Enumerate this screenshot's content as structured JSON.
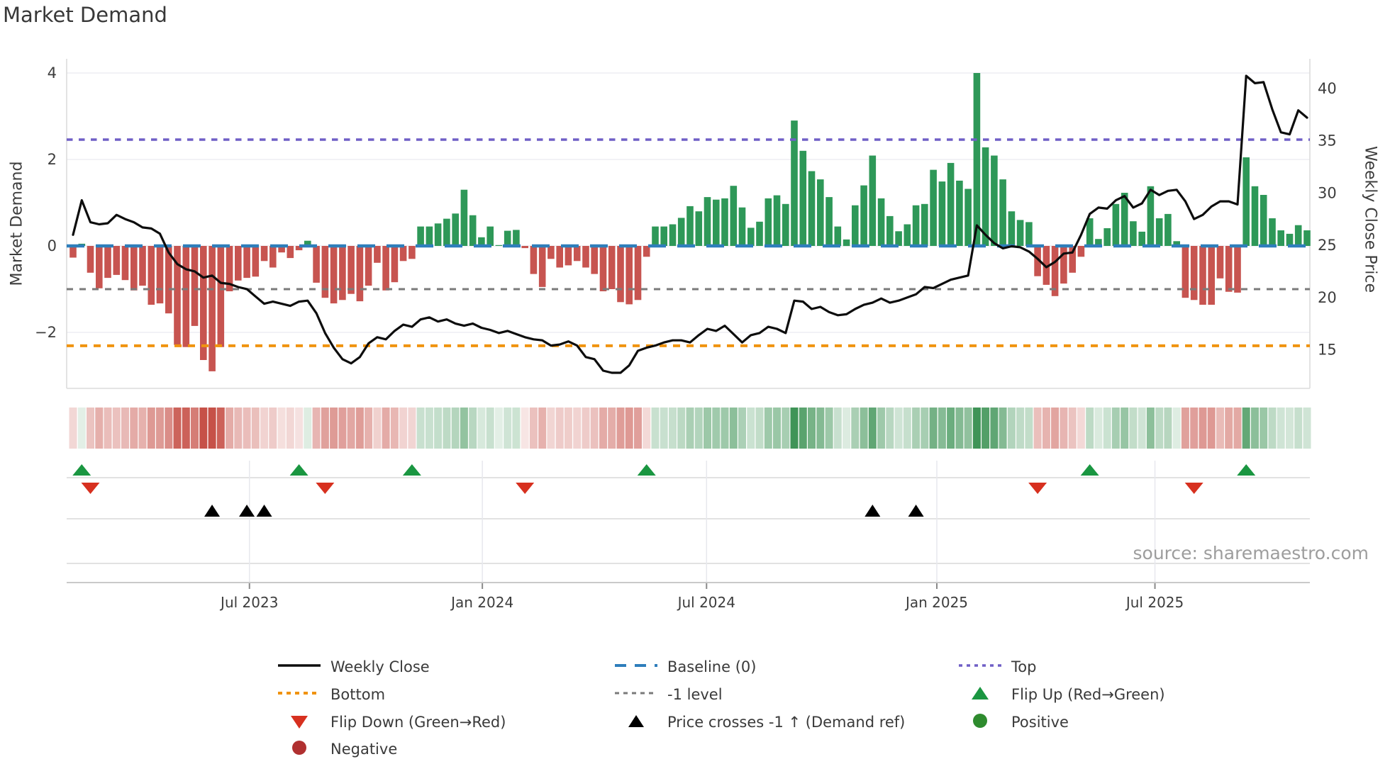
{
  "title": "Market Demand",
  "source": "source: sharemaestro.com",
  "axes": {
    "left_title": "Market Demand",
    "right_title": "Weekly Close Price",
    "left_ticks": [
      {
        "label": "4",
        "value": 4
      },
      {
        "label": "2",
        "value": 2
      },
      {
        "label": "0",
        "value": 0
      },
      {
        "label": "−2",
        "value": -2
      }
    ],
    "right_ticks": [
      {
        "label": "40",
        "value": 40
      },
      {
        "label": "35",
        "value": 35
      },
      {
        "label": "30",
        "value": 30
      },
      {
        "label": "25",
        "value": 25
      },
      {
        "label": "20",
        "value": 20
      },
      {
        "label": "15",
        "value": 15
      }
    ],
    "x_ticks": [
      {
        "label": "Jul 2023",
        "week": 20.3
      },
      {
        "label": "Jan 2024",
        "week": 47.1
      },
      {
        "label": "Jul 2024",
        "week": 72.9
      },
      {
        "label": "Jan 2025",
        "week": 99.4
      },
      {
        "label": "Jul 2025",
        "week": 124.5
      }
    ]
  },
  "chart_data": {
    "type": "bar+line",
    "title": "Market Demand",
    "x_start_date": "2023-02-10",
    "x_frequency": "weekly",
    "n_weeks": 143,
    "ylim_demand": [
      -3.3,
      4.35
    ],
    "ylim_price": [
      11.6,
      42.6
    ],
    "grid_demand_levels": [
      4,
      2,
      0,
      -2
    ],
    "ref_levels": {
      "baseline": 0,
      "top": 2.46,
      "minus_one": -1,
      "bottom": -2.31
    },
    "series": [
      {
        "name": "Market Demand",
        "type": "bar",
        "values": [
          -0.27,
          0.05,
          -0.62,
          -0.98,
          -0.74,
          -0.67,
          -0.79,
          -1.03,
          -0.92,
          -1.36,
          -1.33,
          -1.56,
          -2.29,
          -2.34,
          -1.85,
          -2.64,
          -2.9,
          -2.34,
          -1.05,
          -0.8,
          -0.74,
          -0.71,
          -0.35,
          -0.5,
          -0.15,
          -0.28,
          -0.1,
          0.12,
          -0.85,
          -1.2,
          -1.33,
          -1.25,
          -1.11,
          -1.28,
          -0.92,
          -0.39,
          -1.03,
          -0.84,
          -0.35,
          -0.3,
          0.45,
          0.45,
          0.52,
          0.63,
          0.75,
          1.3,
          0.71,
          0.2,
          0.45,
          0.02,
          0.35,
          0.37,
          -0.05,
          -0.65,
          -0.95,
          -0.3,
          -0.5,
          -0.45,
          -0.35,
          -0.5,
          -0.65,
          -1.05,
          -1.0,
          -1.3,
          -1.35,
          -1.25,
          -0.25,
          0.45,
          0.45,
          0.5,
          0.65,
          0.92,
          0.8,
          1.13,
          1.07,
          1.1,
          1.39,
          0.89,
          0.42,
          0.56,
          1.1,
          1.17,
          0.97,
          2.9,
          2.2,
          1.73,
          1.54,
          1.13,
          0.45,
          0.15,
          0.94,
          1.4,
          2.09,
          1.1,
          0.69,
          0.34,
          0.5,
          0.94,
          0.97,
          1.76,
          1.49,
          1.92,
          1.51,
          1.32,
          4.0,
          2.28,
          2.09,
          1.54,
          0.8,
          0.6,
          0.55,
          -0.7,
          -0.9,
          -1.16,
          -0.87,
          -0.62,
          -0.25,
          0.64,
          0.16,
          0.41,
          0.97,
          1.23,
          0.57,
          0.33,
          1.38,
          0.64,
          0.74,
          0.11,
          -1.2,
          -1.25,
          -1.36,
          -1.36,
          -0.75,
          -1.06,
          -1.08,
          2.05,
          1.38,
          1.18,
          0.64,
          0.36,
          0.28,
          0.48,
          0.36
        ]
      },
      {
        "name": "Weekly Close",
        "type": "line",
        "values": [
          26.0,
          29.3,
          27.2,
          27.0,
          27.1,
          27.9,
          27.5,
          27.2,
          26.7,
          26.6,
          26.1,
          24.3,
          23.2,
          22.7,
          22.5,
          21.9,
          22.1,
          21.4,
          21.3,
          21.0,
          20.8,
          20.1,
          19.4,
          19.6,
          19.4,
          19.2,
          19.6,
          19.7,
          18.5,
          16.6,
          15.2,
          14.1,
          13.7,
          14.3,
          15.6,
          16.2,
          16.0,
          16.8,
          17.4,
          17.2,
          17.9,
          18.1,
          17.7,
          17.9,
          17.5,
          17.3,
          17.5,
          17.1,
          16.9,
          16.6,
          16.8,
          16.5,
          16.2,
          16.0,
          15.9,
          15.4,
          15.5,
          15.8,
          15.4,
          14.3,
          14.1,
          13.0,
          12.8,
          12.8,
          13.5,
          14.9,
          15.2,
          15.4,
          15.7,
          15.9,
          15.9,
          15.7,
          16.4,
          17.0,
          16.8,
          17.3,
          16.5,
          15.7,
          16.4,
          16.6,
          17.2,
          17.0,
          16.6,
          19.7,
          19.6,
          18.9,
          19.1,
          18.6,
          18.3,
          18.4,
          18.9,
          19.3,
          19.5,
          19.9,
          19.5,
          19.7,
          20.0,
          20.3,
          21.0,
          20.9,
          21.3,
          21.7,
          21.9,
          22.1,
          26.9,
          26.0,
          25.2,
          24.7,
          24.9,
          24.8,
          24.4,
          23.7,
          22.9,
          23.4,
          24.2,
          24.3,
          26.0,
          28.0,
          28.6,
          28.5,
          29.3,
          29.7,
          28.6,
          29.0,
          30.3,
          29.8,
          30.2,
          30.3,
          29.2,
          27.5,
          27.9,
          28.7,
          29.2,
          29.2,
          28.9,
          41.2,
          40.5,
          40.6,
          38.0,
          35.8,
          35.6,
          37.9,
          37.2
        ]
      }
    ],
    "markers": {
      "flip_up_weeks": [
        1,
        26,
        39,
        66,
        117,
        135
      ],
      "flip_down_weeks": [
        2,
        29,
        52,
        111,
        129
      ],
      "price_cross_weeks": [
        16,
        20,
        22,
        92,
        97
      ]
    },
    "heatmap": {
      "derived_from": "Market Demand bar values",
      "encoding": "red=negative, green=positive, opacity=magnitude"
    }
  },
  "colors": {
    "bar_positive": "#2e9858",
    "bar_negative": "#c75450",
    "baseline": "#2e7ebb",
    "top_line": "#6f5fc6",
    "minus_one_line": "#7a7a7a",
    "bottom_line": "#f0930f",
    "price_line": "#0d0d0d",
    "heat_positive_rgb": "35,132,62",
    "heat_negative_rgb": "190,55,45",
    "flip_up": "#1a9641",
    "flip_down": "#d7301f",
    "price_cross": "#000000",
    "positive_dot": "#2e8b2e",
    "negative_dot": "#b03030"
  },
  "legend": {
    "columns": [
      {
        "items": [
          {
            "swatch": "line-black",
            "label": "Weekly Close"
          },
          {
            "swatch": "dash-orange",
            "label": "Bottom"
          },
          {
            "swatch": "tri-down-red",
            "label": "Flip Down (Green→Red)"
          },
          {
            "swatch": "circle-darkred",
            "label": "Negative"
          }
        ]
      },
      {
        "items": [
          {
            "swatch": "dash-blue",
            "label": "Baseline (0)"
          },
          {
            "swatch": "dash-gray",
            "label": "-1 level"
          },
          {
            "swatch": "tri-up-black",
            "label": "Price crosses -1 ↑ (Demand ref)"
          }
        ]
      },
      {
        "items": [
          {
            "swatch": "dot-purple",
            "label": "Top"
          },
          {
            "swatch": "tri-up-green",
            "label": "Flip Up (Red→Green)"
          },
          {
            "swatch": "circle-green",
            "label": "Positive"
          }
        ]
      }
    ]
  }
}
